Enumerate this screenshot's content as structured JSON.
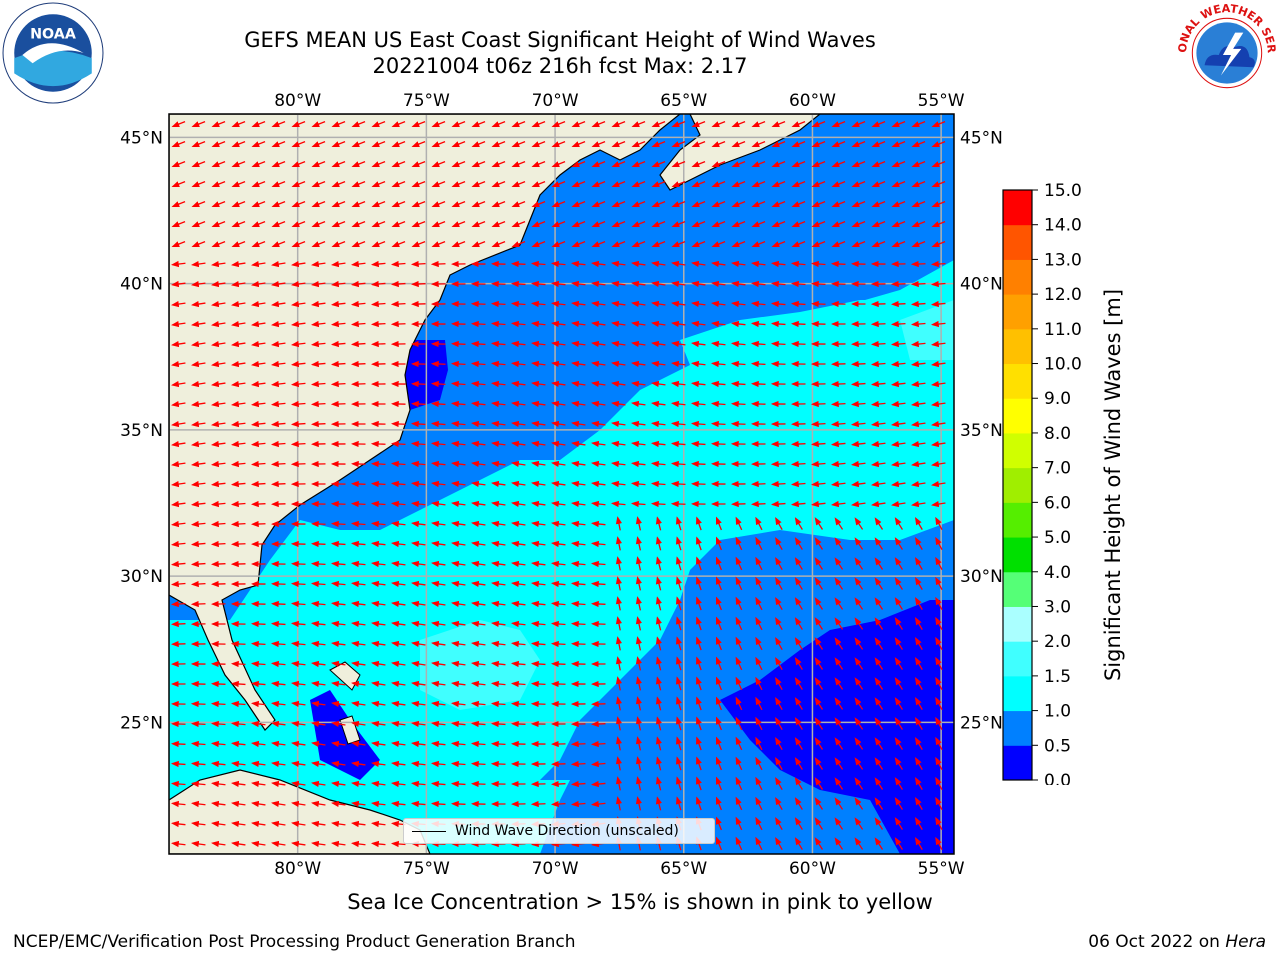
{
  "title": {
    "line1": "GEFS MEAN US East Coast Significant Height of Wind Waves",
    "line2": "20221004 t06z 216h fcst   Max: 2.17"
  },
  "map": {
    "lon_range": [
      -85,
      -54.5
    ],
    "lat_range": [
      20.5,
      45.8
    ],
    "lon_ticks": [
      {
        "value": -80,
        "label": "80°W"
      },
      {
        "value": -75,
        "label": "75°W"
      },
      {
        "value": -70,
        "label": "70°W"
      },
      {
        "value": -65,
        "label": "65°W"
      },
      {
        "value": -60,
        "label": "60°W"
      },
      {
        "value": -55,
        "label": "55°W"
      }
    ],
    "lat_ticks": [
      {
        "value": 45,
        "label": "45°N"
      },
      {
        "value": 40,
        "label": "40°N"
      },
      {
        "value": 35,
        "label": "35°N"
      },
      {
        "value": 30,
        "label": "30°N"
      },
      {
        "value": 25,
        "label": "25°N"
      }
    ],
    "colors": {
      "land": "#efefdc",
      "coast": "#000000",
      "grid": "#b0b0b0",
      "arrow": "#ff0000",
      "band_0_0_5": "#0000ff",
      "band_0_5_1": "#0080ff",
      "band_1_1_5": "#00ffff",
      "band_1_5_2": "#40ffff"
    },
    "legend_label": "Wind Wave Direction (unscaled)"
  },
  "colorbar": {
    "label": "Significant Height of Wind Waves [m]",
    "ticks": [
      "0.0",
      "0.5",
      "1.0",
      "1.5",
      "2.0",
      "3.0",
      "4.0",
      "5.0",
      "6.0",
      "7.0",
      "8.0",
      "9.0",
      "10.0",
      "11.0",
      "12.0",
      "13.0",
      "14.0",
      "15.0"
    ],
    "colors": [
      "#0000ff",
      "#0080ff",
      "#00ffff",
      "#40ffff",
      "#aaffff",
      "#55ff77",
      "#00e000",
      "#55ee00",
      "#a0ee00",
      "#d0ff00",
      "#ffff00",
      "#ffe000",
      "#ffc000",
      "#ffa000",
      "#ff8000",
      "#ff5500",
      "#ff0000"
    ]
  },
  "footnote": "Sea Ice Concentration > 15% is shown in pink to yellow",
  "credit_left": "NCEP/EMC/Verification Post Processing Product Generation Branch",
  "credit_date": "06 Oct 2022 on",
  "credit_machine": "Hera"
}
